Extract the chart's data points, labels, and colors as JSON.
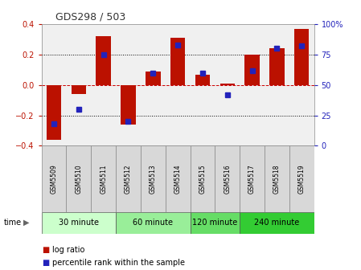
{
  "title": "GDS298 / 503",
  "samples": [
    "GSM5509",
    "GSM5510",
    "GSM5511",
    "GSM5512",
    "GSM5513",
    "GSM5514",
    "GSM5515",
    "GSM5516",
    "GSM5517",
    "GSM5518",
    "GSM5519"
  ],
  "log_ratio": [
    -0.36,
    -0.06,
    0.32,
    -0.26,
    0.09,
    0.31,
    0.07,
    0.01,
    0.2,
    0.24,
    0.37
  ],
  "percentile": [
    18,
    30,
    75,
    20,
    60,
    83,
    60,
    42,
    62,
    80,
    82
  ],
  "groups": [
    {
      "label": "30 minute",
      "start": 0,
      "end": 2,
      "color": "#ccffcc"
    },
    {
      "label": "60 minute",
      "start": 3,
      "end": 5,
      "color": "#99ee99"
    },
    {
      "label": "120 minute",
      "start": 6,
      "end": 7,
      "color": "#66dd66"
    },
    {
      "label": "240 minute",
      "start": 8,
      "end": 10,
      "color": "#33cc33"
    }
  ],
  "ylim": [
    -0.4,
    0.4
  ],
  "y2lim": [
    0,
    100
  ],
  "yticks_left": [
    -0.4,
    -0.2,
    0,
    0.2,
    0.4
  ],
  "y2ticks": [
    0,
    25,
    50,
    75,
    100
  ],
  "bar_color": "#bb1100",
  "dot_color": "#2222bb",
  "bg_color": "#ffffff",
  "plot_bg": "#f0f0f0",
  "legend_labels": [
    "log ratio",
    "percentile rank within the sample"
  ],
  "time_label": "time",
  "group_colors": [
    "#ccffcc",
    "#99ee99",
    "#66dd66",
    "#33cc33"
  ]
}
